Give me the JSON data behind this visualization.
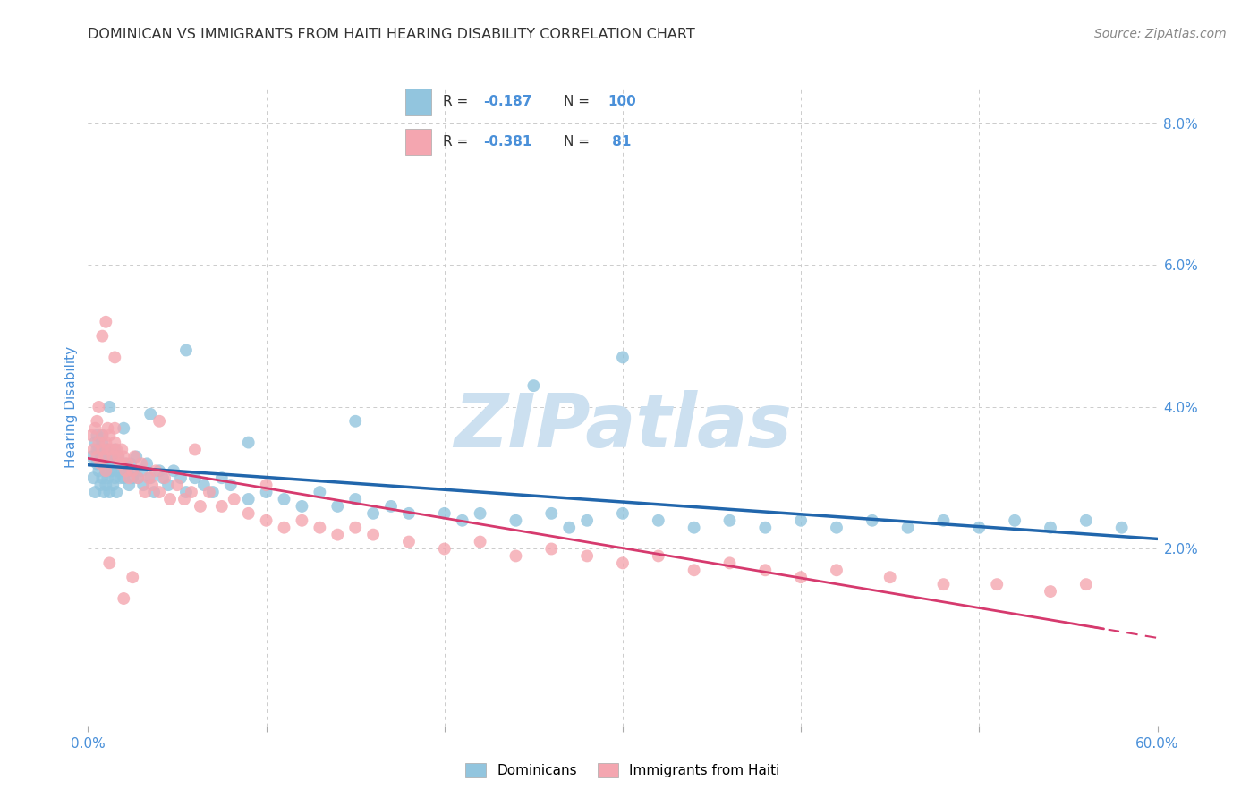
{
  "title": "DOMINICAN VS IMMIGRANTS FROM HAITI HEARING DISABILITY CORRELATION CHART",
  "source": "Source: ZipAtlas.com",
  "ylabel": "Hearing Disability",
  "xlim": [
    0.0,
    0.6
  ],
  "ylim": [
    -0.005,
    0.085
  ],
  "yticks_right": [
    0.02,
    0.04,
    0.06,
    0.08
  ],
  "ytick_right_labels": [
    "2.0%",
    "4.0%",
    "6.0%",
    "8.0%"
  ],
  "legend_label1": "Dominicans",
  "legend_label2": "Immigrants from Haiti",
  "color_blue": "#92c5de",
  "color_pink": "#f4a6b0",
  "color_blue_line": "#2166ac",
  "color_pink_line": "#d63a6e",
  "background_color": "#ffffff",
  "grid_color": "#cccccc",
  "watermark_color": "#cce0f0",
  "title_color": "#333333",
  "axis_label_color": "#4a90d9",
  "dom_x": [
    0.002,
    0.003,
    0.004,
    0.004,
    0.005,
    0.005,
    0.006,
    0.006,
    0.007,
    0.007,
    0.008,
    0.008,
    0.009,
    0.009,
    0.01,
    0.01,
    0.01,
    0.011,
    0.011,
    0.012,
    0.012,
    0.013,
    0.013,
    0.014,
    0.014,
    0.015,
    0.015,
    0.016,
    0.016,
    0.017,
    0.018,
    0.018,
    0.019,
    0.02,
    0.021,
    0.022,
    0.023,
    0.024,
    0.025,
    0.026,
    0.027,
    0.028,
    0.03,
    0.031,
    0.033,
    0.035,
    0.037,
    0.04,
    0.042,
    0.045,
    0.048,
    0.052,
    0.055,
    0.06,
    0.065,
    0.07,
    0.075,
    0.08,
    0.09,
    0.1,
    0.11,
    0.12,
    0.13,
    0.14,
    0.15,
    0.16,
    0.17,
    0.18,
    0.2,
    0.21,
    0.22,
    0.24,
    0.26,
    0.27,
    0.28,
    0.3,
    0.32,
    0.34,
    0.36,
    0.38,
    0.4,
    0.42,
    0.44,
    0.46,
    0.48,
    0.5,
    0.52,
    0.54,
    0.56,
    0.58,
    0.3,
    0.25,
    0.15,
    0.09,
    0.055,
    0.035,
    0.02,
    0.012,
    0.008,
    0.005
  ],
  "dom_y": [
    0.033,
    0.03,
    0.035,
    0.028,
    0.032,
    0.036,
    0.031,
    0.034,
    0.029,
    0.033,
    0.03,
    0.035,
    0.028,
    0.032,
    0.033,
    0.031,
    0.029,
    0.034,
    0.03,
    0.032,
    0.028,
    0.031,
    0.033,
    0.029,
    0.032,
    0.03,
    0.034,
    0.031,
    0.028,
    0.033,
    0.03,
    0.032,
    0.031,
    0.03,
    0.032,
    0.031,
    0.029,
    0.032,
    0.03,
    0.031,
    0.033,
    0.03,
    0.031,
    0.029,
    0.032,
    0.03,
    0.028,
    0.031,
    0.03,
    0.029,
    0.031,
    0.03,
    0.028,
    0.03,
    0.029,
    0.028,
    0.03,
    0.029,
    0.027,
    0.028,
    0.027,
    0.026,
    0.028,
    0.026,
    0.027,
    0.025,
    0.026,
    0.025,
    0.025,
    0.024,
    0.025,
    0.024,
    0.025,
    0.023,
    0.024,
    0.025,
    0.024,
    0.023,
    0.024,
    0.023,
    0.024,
    0.023,
    0.024,
    0.023,
    0.024,
    0.023,
    0.024,
    0.023,
    0.024,
    0.023,
    0.047,
    0.043,
    0.038,
    0.035,
    0.048,
    0.039,
    0.037,
    0.04,
    0.036,
    0.034
  ],
  "haiti_x": [
    0.002,
    0.003,
    0.004,
    0.005,
    0.005,
    0.006,
    0.006,
    0.007,
    0.008,
    0.008,
    0.009,
    0.01,
    0.01,
    0.011,
    0.011,
    0.012,
    0.013,
    0.014,
    0.015,
    0.015,
    0.016,
    0.017,
    0.018,
    0.019,
    0.02,
    0.021,
    0.022,
    0.023,
    0.025,
    0.026,
    0.028,
    0.03,
    0.032,
    0.034,
    0.036,
    0.038,
    0.04,
    0.043,
    0.046,
    0.05,
    0.054,
    0.058,
    0.063,
    0.068,
    0.075,
    0.082,
    0.09,
    0.1,
    0.11,
    0.12,
    0.13,
    0.14,
    0.15,
    0.16,
    0.18,
    0.2,
    0.22,
    0.24,
    0.26,
    0.28,
    0.3,
    0.32,
    0.34,
    0.36,
    0.38,
    0.4,
    0.42,
    0.45,
    0.48,
    0.51,
    0.54,
    0.56,
    0.008,
    0.01,
    0.015,
    0.04,
    0.06,
    0.1,
    0.025,
    0.012,
    0.02
  ],
  "haiti_y": [
    0.036,
    0.034,
    0.037,
    0.038,
    0.033,
    0.035,
    0.04,
    0.032,
    0.034,
    0.036,
    0.033,
    0.035,
    0.031,
    0.037,
    0.034,
    0.036,
    0.034,
    0.033,
    0.035,
    0.037,
    0.034,
    0.033,
    0.032,
    0.034,
    0.033,
    0.031,
    0.032,
    0.03,
    0.031,
    0.033,
    0.03,
    0.032,
    0.028,
    0.03,
    0.029,
    0.031,
    0.028,
    0.03,
    0.027,
    0.029,
    0.027,
    0.028,
    0.026,
    0.028,
    0.026,
    0.027,
    0.025,
    0.024,
    0.023,
    0.024,
    0.023,
    0.022,
    0.023,
    0.022,
    0.021,
    0.02,
    0.021,
    0.019,
    0.02,
    0.019,
    0.018,
    0.019,
    0.017,
    0.018,
    0.017,
    0.016,
    0.017,
    0.016,
    0.015,
    0.015,
    0.014,
    0.015,
    0.05,
    0.052,
    0.047,
    0.038,
    0.034,
    0.029,
    0.016,
    0.018,
    0.013
  ]
}
